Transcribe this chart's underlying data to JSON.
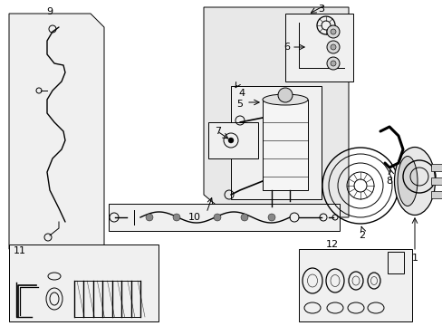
{
  "bg_color": "#ffffff",
  "shade_color": "#e8e8e8",
  "line_color": "#000000",
  "box_color": "#f0f0f0",
  "lw": 0.7
}
